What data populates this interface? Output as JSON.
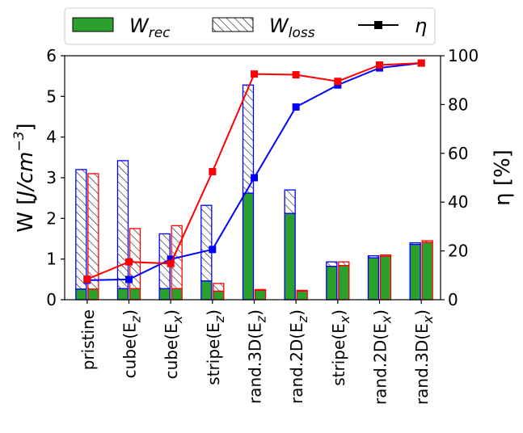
{
  "chart_data": {
    "type": "bar",
    "categories": [
      "pristine",
      "cube(E_z)",
      "cube(E_x)",
      "stripe(E_z)",
      "rand.3D(E_z)",
      "rand.2D(E_z)",
      "stripe(E_x)",
      "rand.2D(E_x)",
      "rand.3D(E_x)"
    ],
    "category_labels": [
      {
        "base": "pristine",
        "sub": ""
      },
      {
        "base": "cube(E",
        "sub": "z",
        "close": ")"
      },
      {
        "base": "cube(E",
        "sub": "x",
        "close": ")"
      },
      {
        "base": "stripe(E",
        "sub": "z",
        "close": ")"
      },
      {
        "base": "rand.3D(E",
        "sub": "z",
        "close": ")"
      },
      {
        "base": "rand.2D(E",
        "sub": "z",
        "close": ")"
      },
      {
        "base": "stripe(E",
        "sub": "x",
        "close": ")"
      },
      {
        "base": "rand.2D(E",
        "sub": "x",
        "close": ")"
      },
      {
        "base": "rand.3D(E",
        "sub": "x",
        "close": ")"
      }
    ],
    "ylabel_left": "W [J/cm⁻³]",
    "ylabel_left_parts": {
      "prefix": "W [",
      "unit": "J/cm",
      "exp": "−3",
      "suffix": "]"
    },
    "ylabel_right": "η [%]",
    "ylim_left": [
      0,
      6
    ],
    "ylim_right": [
      0,
      100
    ],
    "yticks_left": [
      "0",
      "1",
      "2",
      "3",
      "4",
      "5",
      "6"
    ],
    "yticks_right": [
      "0",
      "20",
      "40",
      "60",
      "80",
      "100"
    ],
    "legend": {
      "placement": "top-center, outside",
      "entries": [
        {
          "label": "W",
          "sub": "rec",
          "style": "green-filled-bar"
        },
        {
          "label": "W",
          "sub": "loss",
          "style": "hatched-bar"
        },
        {
          "label": "η",
          "sub": "",
          "style": "line-square-marker"
        }
      ]
    },
    "series": [
      {
        "group": "blue",
        "edge_color": "#0000ff",
        "W_total": [
          3.2,
          3.42,
          1.62,
          2.32,
          5.28,
          2.7,
          0.93,
          1.08,
          1.4
        ],
        "W_rec": [
          0.26,
          0.27,
          0.27,
          0.46,
          2.62,
          2.12,
          0.82,
          1.03,
          1.36
        ],
        "eta": [
          8,
          8.3,
          16.6,
          20.6,
          50,
          79,
          88,
          95,
          97
        ]
      },
      {
        "group": "red",
        "edge_color": "#ff0000",
        "W_total": [
          3.1,
          1.75,
          1.82,
          0.4,
          0.25,
          0.23,
          0.93,
          1.1,
          1.45
        ],
        "W_rec": [
          0.26,
          0.27,
          0.27,
          0.21,
          0.23,
          0.21,
          0.84,
          1.07,
          1.41
        ],
        "eta": [
          8.4,
          15.5,
          14.8,
          52.5,
          92.5,
          92.2,
          89.5,
          96.2,
          97
        ]
      }
    ],
    "colors": {
      "rec_fill": "#2ca02c",
      "blue": "#0000ff",
      "red": "#ff0000",
      "hatch": "#000000"
    },
    "grid": false
  }
}
